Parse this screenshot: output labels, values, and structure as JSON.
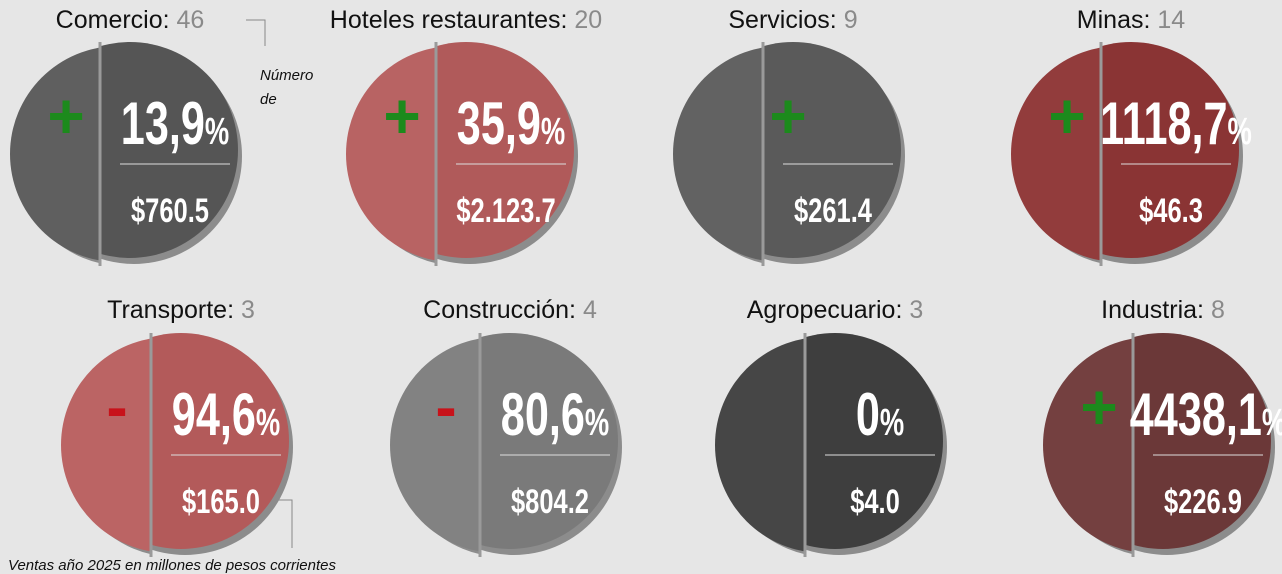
{
  "sectors": [
    {
      "name": "Comercio:",
      "count": 46,
      "sign": "+",
      "change": "13,9",
      "unit": "%",
      "sales": "$760.5",
      "color": "#555555",
      "shade": "#5f5f5f"
    },
    {
      "name": "Hoteles restaurantes:",
      "count": 20,
      "sign": "+",
      "change": "35,9",
      "unit": "%",
      "sales": "$2.123.7",
      "color": "#b05a5a",
      "shade": "#b86363"
    },
    {
      "name": "Servicios:",
      "count": 9,
      "sign": "+",
      "sales": "$261.4",
      "color": "#5a5a5a",
      "shade": "#626262"
    },
    {
      "name": "Minas:",
      "count": 14,
      "sign": "+",
      "change": "1118,7",
      "unit": "%",
      "sales": "$46.3",
      "color": "#8a3434",
      "shade": "#923c3c"
    },
    {
      "name": "Transporte:",
      "count": 3,
      "sign": "-",
      "change": "94,6",
      "unit": "%",
      "sales": "$165.0",
      "color": "#b35a5a",
      "shade": "#bb6464"
    },
    {
      "name": "Construcción:",
      "count": 4,
      "sign": "-",
      "change": "80,6",
      "unit": "%",
      "sales": "$804.2",
      "color": "#7a7a7a",
      "shade": "#828282"
    },
    {
      "name": "Agropecuario:",
      "count": 3,
      "change": "0",
      "unit": "%",
      "sales": "$4.0",
      "color": "#3e3e3e",
      "shade": "#464646"
    },
    {
      "name": "Industria:",
      "count": 8,
      "sign": "+",
      "change": "4438,1",
      "unit": "%",
      "sales": "$226.9",
      "color": "#6b3838",
      "shade": "#744040"
    }
  ],
  "annotations": {
    "count_note": "Número de",
    "sales_note": "Ventas año 2025 en millones de pesos corrientes"
  }
}
